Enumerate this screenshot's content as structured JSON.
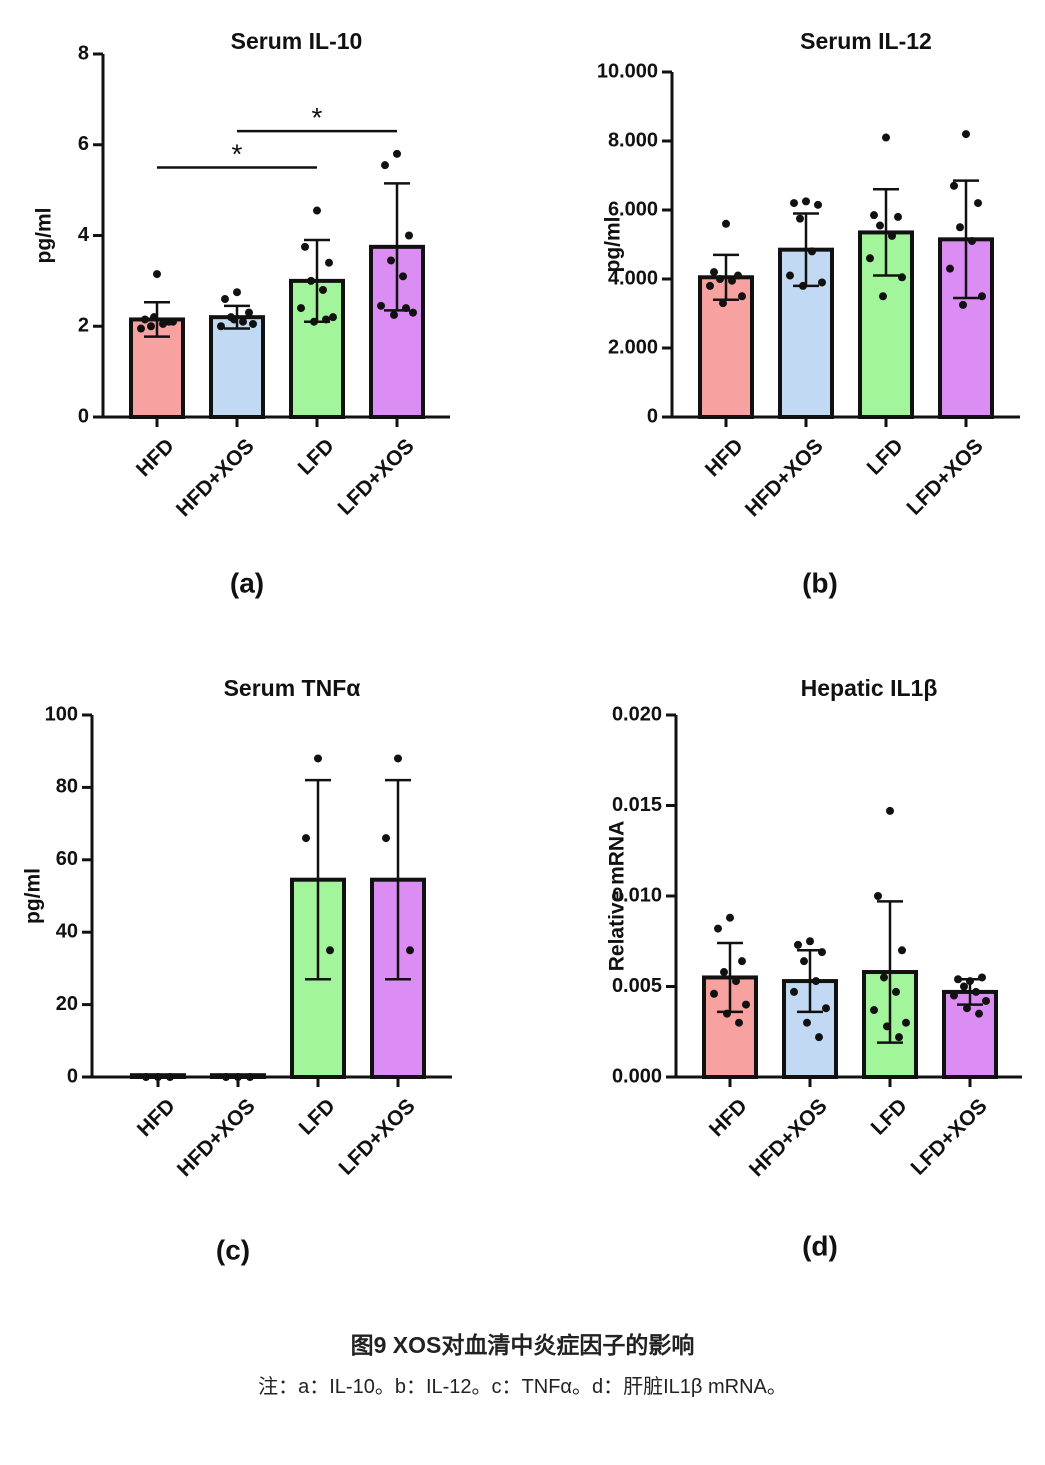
{
  "chart_data": [
    {
      "type": "bar",
      "title": "Serum IL-10",
      "ylabel": "pg/ml",
      "panel_label": "(a)",
      "categories": [
        "HFD",
        "HFD+XOS",
        "LFD",
        "LFD+XOS"
      ],
      "values": [
        2.15,
        2.2,
        3.0,
        3.75
      ],
      "errors": [
        0.38,
        0.25,
        0.9,
        1.4
      ],
      "points": [
        [
          3.15,
          2.15,
          2.1,
          2.0,
          2.05,
          1.95,
          2.1,
          2.2
        ],
        [
          2.75,
          2.6,
          2.3,
          2.2,
          2.1,
          2.0,
          2.05,
          2.15
        ],
        [
          4.55,
          3.75,
          3.4,
          3.0,
          2.8,
          2.4,
          2.2,
          2.1,
          2.15
        ],
        [
          5.8,
          5.55,
          4.0,
          3.45,
          3.1,
          2.45,
          2.3,
          2.25,
          2.4
        ]
      ],
      "colors": [
        "#f7a1a0",
        "#c2d9f3",
        "#a2f59b",
        "#dc8df3"
      ],
      "ylim": [
        0,
        8
      ],
      "yticks": [
        0,
        2,
        4,
        6,
        8
      ],
      "significance": [
        {
          "label": "*",
          "from": 0,
          "to": 2,
          "y": 5.5
        },
        {
          "label": "*",
          "from": 1,
          "to": 3,
          "y": 6.3
        }
      ]
    },
    {
      "type": "bar",
      "title": "Serum IL-12",
      "ylabel": "pg/ml",
      "panel_label": "(b)",
      "categories": [
        "HFD",
        "HFD+XOS",
        "LFD",
        "LFD+XOS"
      ],
      "values": [
        4050,
        4850,
        5350,
        5150
      ],
      "errors": [
        650,
        1050,
        1250,
        1700
      ],
      "points": [
        [
          5600,
          4200,
          4100,
          4000,
          3950,
          3800,
          3500,
          3300
        ],
        [
          6250,
          6200,
          6150,
          5750,
          4800,
          4100,
          3900,
          3800
        ],
        [
          8100,
          5850,
          5800,
          5550,
          5250,
          4600,
          4050,
          3500
        ],
        [
          8200,
          6700,
          6200,
          5500,
          5100,
          4300,
          3500,
          3250
        ]
      ],
      "colors": [
        "#f7a1a0",
        "#c2d9f3",
        "#a2f59b",
        "#dc8df3"
      ],
      "ylim": [
        0,
        10000
      ],
      "yticks": [
        0,
        {
          "value": 2000,
          "label": "2.000"
        },
        {
          "value": 4000,
          "label": "4.000"
        },
        {
          "value": 6000,
          "label": "6.000"
        },
        {
          "value": 8000,
          "label": "8.000"
        },
        {
          "value": 10000,
          "label": "10.000"
        }
      ]
    },
    {
      "type": "bar",
      "title": "Serum TNFα",
      "ylabel": "pg/ml",
      "panel_label": "(c)",
      "categories": [
        "HFD",
        "HFD+XOS",
        "LFD",
        "LFD+XOS"
      ],
      "values": [
        0.5,
        0.5,
        54.5,
        54.5
      ],
      "errors": [
        0,
        0,
        27.5,
        27.5
      ],
      "points": [
        [
          0,
          0,
          0
        ],
        [
          0,
          0,
          0
        ],
        [
          88,
          66,
          35
        ],
        [
          88,
          66,
          35
        ]
      ],
      "colors": [
        "#f7a1a0",
        "#c2d9f3",
        "#a2f59b",
        "#dc8df3"
      ],
      "ylim": [
        0,
        100
      ],
      "yticks": [
        0,
        20,
        40,
        60,
        80,
        100
      ]
    },
    {
      "type": "bar",
      "title": "Hepatic IL1β",
      "ylabel": "Relative mRNA",
      "panel_label": "(d)",
      "categories": [
        "HFD",
        "HFD+XOS",
        "LFD",
        "LFD+XOS"
      ],
      "values": [
        0.0055,
        0.0053,
        0.0058,
        0.0047
      ],
      "errors": [
        0.0019,
        0.0017,
        0.0039,
        0.0007
      ],
      "points": [
        [
          0.0088,
          0.0082,
          0.0064,
          0.0058,
          0.0053,
          0.0046,
          0.004,
          0.0035,
          0.003
        ],
        [
          0.0075,
          0.0073,
          0.0069,
          0.0064,
          0.0053,
          0.0047,
          0.0038,
          0.003,
          0.0022
        ],
        [
          0.0147,
          0.01,
          0.007,
          0.0055,
          0.0047,
          0.0037,
          0.003,
          0.0028,
          0.0022
        ],
        [
          0.0053,
          0.0054,
          0.0055,
          0.005,
          0.0047,
          0.0045,
          0.0042,
          0.0038,
          0.0035
        ]
      ],
      "colors": [
        "#f7a1a0",
        "#c2d9f3",
        "#a2f59b",
        "#dc8df3"
      ],
      "ylim": [
        0,
        0.02
      ],
      "yticks": [
        {
          "value": 0,
          "label": "0.000"
        },
        {
          "value": 0.005,
          "label": "0.005"
        },
        {
          "value": 0.01,
          "label": "0.010"
        },
        {
          "value": 0.015,
          "label": "0.015"
        },
        {
          "value": 0.02,
          "label": "0.020"
        }
      ]
    }
  ],
  "caption": "图9 XOS对血清中炎症因子的影响",
  "note": "注：a：IL-10。b：IL-12。c：TNFα。d：肝脏IL1β mRNA。"
}
